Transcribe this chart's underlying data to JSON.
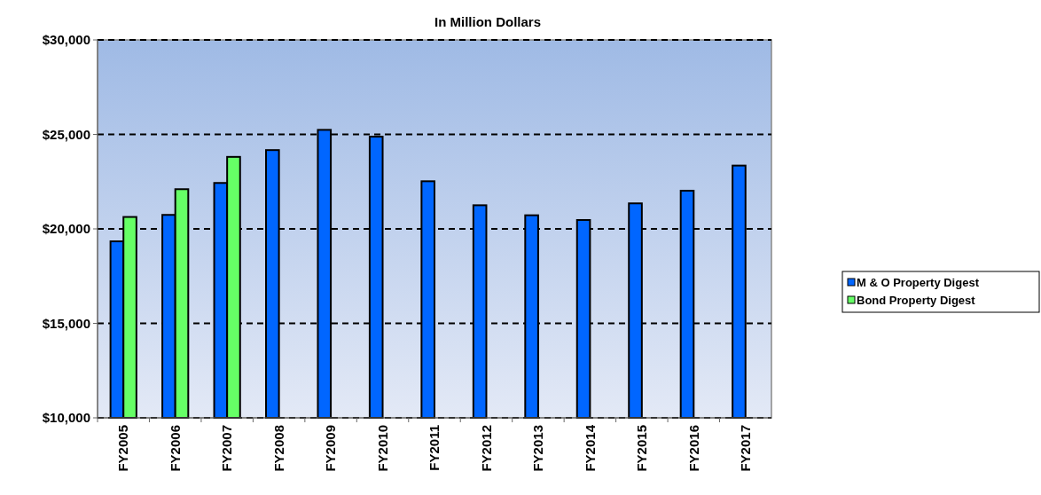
{
  "chart_data": {
    "type": "bar",
    "title": "In Million Dollars",
    "categories": [
      "FY2005",
      "FY2006",
      "FY2007",
      "FY2008",
      "FY2009",
      "FY2010",
      "FY2011",
      "FY2012",
      "FY2013",
      "FY2014",
      "FY2015",
      "FY2016",
      "FY2017"
    ],
    "series": [
      {
        "name": "M & O Property Digest",
        "color": "#0066ff",
        "values": [
          19340,
          20740,
          22430,
          24170,
          25240,
          24880,
          22520,
          21250,
          20720,
          20470,
          21350,
          22020,
          23350
        ]
      },
      {
        "name": "Bond Property Digest",
        "color": "#66ff66",
        "values": [
          20630,
          22100,
          23810,
          null,
          null,
          null,
          null,
          null,
          null,
          null,
          null,
          null,
          null
        ]
      }
    ],
    "ylim": [
      10000,
      30000
    ],
    "yticks": [
      {
        "value": 10000,
        "label": "$10,000"
      },
      {
        "value": 15000,
        "label": "$15,000"
      },
      {
        "value": 20000,
        "label": "$20,000"
      },
      {
        "value": 25000,
        "label": "$25,000"
      },
      {
        "value": 30000,
        "label": "$30,000"
      }
    ],
    "grid": "y",
    "line_style": "dashed",
    "legend": "right"
  }
}
